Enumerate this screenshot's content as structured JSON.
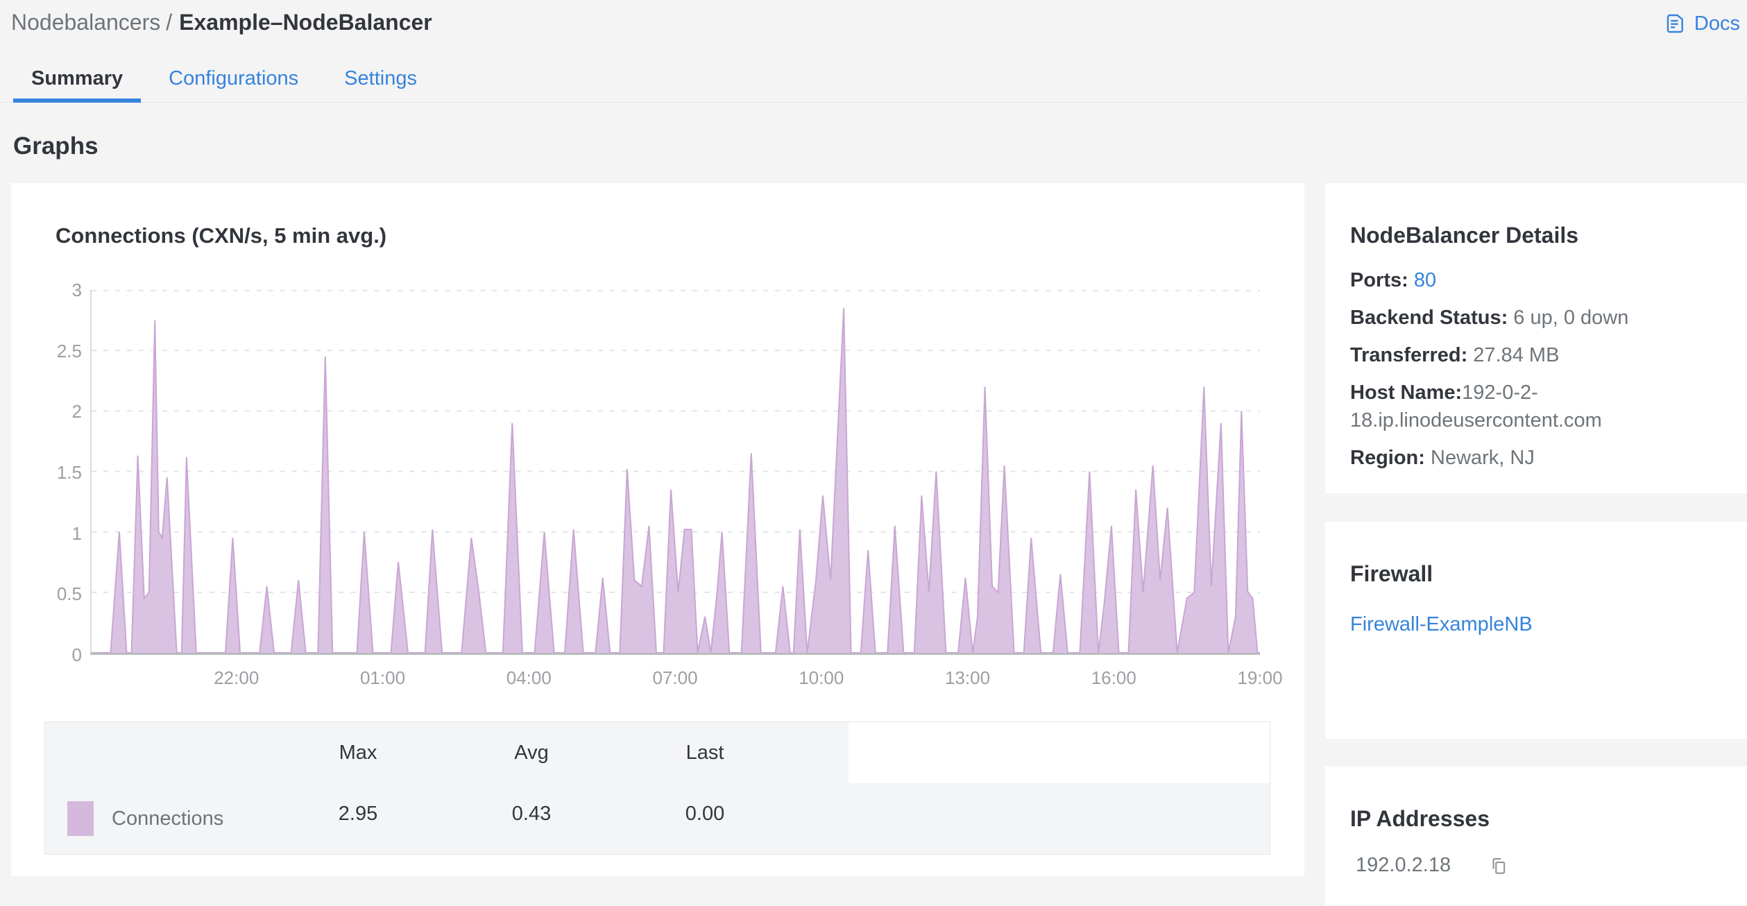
{
  "page": {
    "background": "#f4f4f5",
    "accent_blue": "#3683dc",
    "text_dark": "#32363c",
    "text_gray": "#6e7479"
  },
  "breadcrumb": {
    "section": "Nodebalancers",
    "separator": "/",
    "current": "Example–NodeBalancer"
  },
  "docs": {
    "label": "Docs",
    "icon": "document-icon"
  },
  "tabs": [
    {
      "label": "Summary",
      "active": true
    },
    {
      "label": "Configurations",
      "active": false
    },
    {
      "label": "Settings",
      "active": false
    }
  ],
  "section_title": "Graphs",
  "chart_data": {
    "type": "area",
    "title": "Connections (CXN/s, 5 min avg.)",
    "ylim": [
      0,
      3
    ],
    "y_ticks": [
      {
        "v": 0,
        "label": "0"
      },
      {
        "v": 0.5,
        "label": "0.5"
      },
      {
        "v": 1,
        "label": "1"
      },
      {
        "v": 1.5,
        "label": "1.5"
      },
      {
        "v": 2,
        "label": "2"
      },
      {
        "v": 2.5,
        "label": "2.5"
      },
      {
        "v": 3,
        "label": "3"
      }
    ],
    "x_range_hours": [
      0,
      24
    ],
    "x_ticks": [
      {
        "h": 3,
        "label": "22:00"
      },
      {
        "h": 6,
        "label": "01:00"
      },
      {
        "h": 9,
        "label": "04:00"
      },
      {
        "h": 12,
        "label": "07:00"
      },
      {
        "h": 15,
        "label": "10:00"
      },
      {
        "h": 18,
        "label": "13:00"
      },
      {
        "h": 21,
        "label": "16:00"
      },
      {
        "h": 24,
        "label": "19:00"
      }
    ],
    "grid": "horizontal-dashed",
    "legend_position": "bottom-table",
    "series": [
      {
        "name": "Connections",
        "fill": "#dac2e3",
        "stroke": "#c9a6d4",
        "swatch": "#d5b8de",
        "points": [
          [
            0,
            0
          ],
          [
            0.39,
            0
          ],
          [
            0.57,
            1.0
          ],
          [
            0.72,
            0
          ],
          [
            0.82,
            0
          ],
          [
            0.95,
            1.63
          ],
          [
            1.08,
            0.45
          ],
          [
            1.18,
            0.5
          ],
          [
            1.3,
            2.75
          ],
          [
            1.38,
            1.0
          ],
          [
            1.45,
            0.95
          ],
          [
            1.55,
            1.45
          ],
          [
            1.75,
            0
          ],
          [
            1.85,
            0
          ],
          [
            1.95,
            1.62
          ],
          [
            2.15,
            0
          ],
          [
            2.75,
            0
          ],
          [
            2.9,
            0.95
          ],
          [
            3.05,
            0
          ],
          [
            3.45,
            0
          ],
          [
            3.6,
            0.55
          ],
          [
            3.75,
            0
          ],
          [
            4.1,
            0
          ],
          [
            4.25,
            0.6
          ],
          [
            4.4,
            0
          ],
          [
            4.65,
            0
          ],
          [
            4.8,
            2.45
          ],
          [
            4.95,
            0
          ],
          [
            5.45,
            0
          ],
          [
            5.6,
            1.0
          ],
          [
            5.78,
            0
          ],
          [
            6.15,
            0
          ],
          [
            6.3,
            0.75
          ],
          [
            6.5,
            0
          ],
          [
            6.85,
            0
          ],
          [
            7.0,
            1.02
          ],
          [
            7.2,
            0
          ],
          [
            7.6,
            0
          ],
          [
            7.8,
            0.95
          ],
          [
            7.95,
            0.52
          ],
          [
            8.1,
            0
          ],
          [
            8.45,
            0
          ],
          [
            8.64,
            1.9
          ],
          [
            8.85,
            0
          ],
          [
            9.1,
            0
          ],
          [
            9.3,
            1.0
          ],
          [
            9.5,
            0
          ],
          [
            9.72,
            0
          ],
          [
            9.9,
            1.02
          ],
          [
            10.1,
            0
          ],
          [
            10.35,
            0
          ],
          [
            10.5,
            0.62
          ],
          [
            10.65,
            0
          ],
          [
            10.85,
            0
          ],
          [
            11.0,
            1.52
          ],
          [
            11.15,
            0.6
          ],
          [
            11.3,
            0.55
          ],
          [
            11.45,
            1.05
          ],
          [
            11.6,
            0
          ],
          [
            11.75,
            0
          ],
          [
            11.9,
            1.35
          ],
          [
            12.05,
            0.5
          ],
          [
            12.18,
            1.02
          ],
          [
            12.32,
            1.02
          ],
          [
            12.45,
            0
          ],
          [
            12.6,
            0.3
          ],
          [
            12.72,
            0
          ],
          [
            12.85,
            0.5
          ],
          [
            12.95,
            1.0
          ],
          [
            13.1,
            0
          ],
          [
            13.35,
            0
          ],
          [
            13.55,
            1.65
          ],
          [
            13.75,
            0
          ],
          [
            14.05,
            0
          ],
          [
            14.2,
            0.55
          ],
          [
            14.35,
            0
          ],
          [
            14.42,
            0
          ],
          [
            14.55,
            1.02
          ],
          [
            14.7,
            0
          ],
          [
            14.88,
            0.6
          ],
          [
            15.02,
            1.3
          ],
          [
            15.18,
            0.6
          ],
          [
            15.45,
            2.85
          ],
          [
            15.6,
            0
          ],
          [
            15.8,
            0
          ],
          [
            15.95,
            0.85
          ],
          [
            16.1,
            0
          ],
          [
            16.35,
            0
          ],
          [
            16.5,
            1.05
          ],
          [
            16.68,
            0
          ],
          [
            16.9,
            0
          ],
          [
            17.05,
            1.3
          ],
          [
            17.2,
            0.5
          ],
          [
            17.35,
            1.5
          ],
          [
            17.55,
            0
          ],
          [
            17.8,
            0
          ],
          [
            17.95,
            0.62
          ],
          [
            18.1,
            0
          ],
          [
            18.2,
            0.3
          ],
          [
            18.35,
            2.2
          ],
          [
            18.5,
            0.55
          ],
          [
            18.62,
            0.5
          ],
          [
            18.75,
            1.55
          ],
          [
            18.95,
            0
          ],
          [
            19.15,
            0
          ],
          [
            19.3,
            0.95
          ],
          [
            19.5,
            0
          ],
          [
            19.75,
            0
          ],
          [
            19.9,
            0.65
          ],
          [
            20.05,
            0
          ],
          [
            20.3,
            0
          ],
          [
            20.5,
            1.5
          ],
          [
            20.68,
            0
          ],
          [
            20.8,
            0.4
          ],
          [
            20.95,
            1.05
          ],
          [
            21.1,
            0
          ],
          [
            21.3,
            0
          ],
          [
            21.45,
            1.35
          ],
          [
            21.6,
            0.5
          ],
          [
            21.8,
            1.55
          ],
          [
            21.95,
            0.6
          ],
          [
            22.1,
            1.2
          ],
          [
            22.3,
            0
          ],
          [
            22.5,
            0.45
          ],
          [
            22.65,
            0.5
          ],
          [
            22.85,
            2.2
          ],
          [
            23.0,
            0.55
          ],
          [
            23.2,
            1.9
          ],
          [
            23.35,
            0
          ],
          [
            23.5,
            0.3
          ],
          [
            23.62,
            2.0
          ],
          [
            23.75,
            0.5
          ],
          [
            23.85,
            0.45
          ],
          [
            23.95,
            0
          ],
          [
            24,
            0
          ]
        ]
      }
    ],
    "stats": {
      "max": 2.95,
      "avg": 0.43,
      "last": 0.0
    }
  },
  "legend": {
    "headers": [
      "Max",
      "Avg",
      "Last"
    ],
    "row": {
      "name": "Connections",
      "max": "2.95",
      "avg": "0.43",
      "last": "0.00"
    }
  },
  "details": {
    "title": "NodeBalancer Details",
    "ports_label": "Ports:",
    "ports_value": "80",
    "backend_label": "Backend Status:",
    "backend_value": "6 up, 0 down",
    "transferred_label": "Transferred:",
    "transferred_value": "27.84 MB",
    "hostname_label": "Host Name:",
    "hostname_value": "192-0-2-18.ip.linodeusercontent.com",
    "region_label": "Region:",
    "region_value": "Newark, NJ"
  },
  "firewall": {
    "title": "Firewall",
    "link": "Firewall-ExampleNB"
  },
  "ip_addresses": {
    "title": "IP Addresses",
    "ip": "192.0.2.18",
    "copy_icon": "copy-icon"
  }
}
